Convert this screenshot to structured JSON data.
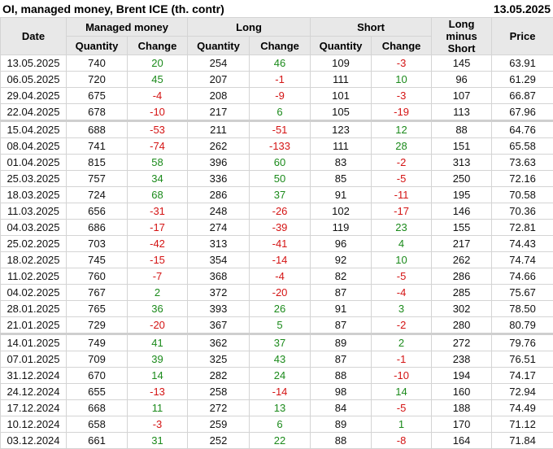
{
  "title": "OI, managed money, Brent ICE (th. contr)",
  "date": "13.05.2025",
  "colors": {
    "positive": "#1b8a1b",
    "negative": "#d41414",
    "header_bg": "#e8e8e8"
  },
  "headers": {
    "date": "Date",
    "managed_money": "Managed money",
    "long": "Long",
    "short": "Short",
    "long_minus_short": "Long minus Short",
    "price": "Price",
    "quantity": "Quantity",
    "change": "Change"
  },
  "rows": [
    [
      "13.05.2025",
      "740",
      "20",
      "254",
      "46",
      "109",
      "-3",
      "145",
      "63.91"
    ],
    [
      "06.05.2025",
      "720",
      "45",
      "207",
      "-1",
      "111",
      "10",
      "96",
      "61.29"
    ],
    [
      "29.04.2025",
      "675",
      "-4",
      "208",
      "-9",
      "101",
      "-3",
      "107",
      "66.87"
    ],
    [
      "22.04.2025",
      "678",
      "-10",
      "217",
      "6",
      "105",
      "-19",
      "113",
      "67.96"
    ],
    [
      "15.04.2025",
      "688",
      "-53",
      "211",
      "-51",
      "123",
      "12",
      "88",
      "64.76"
    ],
    [
      "08.04.2025",
      "741",
      "-74",
      "262",
      "-133",
      "111",
      "28",
      "151",
      "65.58"
    ],
    [
      "01.04.2025",
      "815",
      "58",
      "396",
      "60",
      "83",
      "-2",
      "313",
      "73.63"
    ],
    [
      "25.03.2025",
      "757",
      "34",
      "336",
      "50",
      "85",
      "-5",
      "250",
      "72.16"
    ],
    [
      "18.03.2025",
      "724",
      "68",
      "286",
      "37",
      "91",
      "-11",
      "195",
      "70.58"
    ],
    [
      "11.03.2025",
      "656",
      "-31",
      "248",
      "-26",
      "102",
      "-17",
      "146",
      "70.36"
    ],
    [
      "04.03.2025",
      "686",
      "-17",
      "274",
      "-39",
      "119",
      "23",
      "155",
      "72.81"
    ],
    [
      "25.02.2025",
      "703",
      "-42",
      "313",
      "-41",
      "96",
      "4",
      "217",
      "74.43"
    ],
    [
      "18.02.2025",
      "745",
      "-15",
      "354",
      "-14",
      "92",
      "10",
      "262",
      "74.74"
    ],
    [
      "11.02.2025",
      "760",
      "-7",
      "368",
      "-4",
      "82",
      "-5",
      "286",
      "74.66"
    ],
    [
      "04.02.2025",
      "767",
      "2",
      "372",
      "-20",
      "87",
      "-4",
      "285",
      "75.67"
    ],
    [
      "28.01.2025",
      "765",
      "36",
      "393",
      "26",
      "91",
      "3",
      "302",
      "78.50"
    ],
    [
      "21.01.2025",
      "729",
      "-20",
      "367",
      "5",
      "87",
      "-2",
      "280",
      "80.79"
    ],
    [
      "14.01.2025",
      "749",
      "41",
      "362",
      "37",
      "89",
      "2",
      "272",
      "79.76"
    ],
    [
      "07.01.2025",
      "709",
      "39",
      "325",
      "43",
      "87",
      "-1",
      "238",
      "76.51"
    ],
    [
      "31.12.2024",
      "670",
      "14",
      "282",
      "24",
      "88",
      "-10",
      "194",
      "74.17"
    ],
    [
      "24.12.2024",
      "655",
      "-13",
      "258",
      "-14",
      "98",
      "14",
      "160",
      "72.94"
    ],
    [
      "17.12.2024",
      "668",
      "11",
      "272",
      "13",
      "84",
      "-5",
      "188",
      "74.49"
    ],
    [
      "10.12.2024",
      "658",
      "-3",
      "259",
      "6",
      "89",
      "1",
      "170",
      "71.12"
    ],
    [
      "03.12.2024",
      "661",
      "31",
      "252",
      "22",
      "88",
      "-8",
      "164",
      "71.84"
    ]
  ]
}
